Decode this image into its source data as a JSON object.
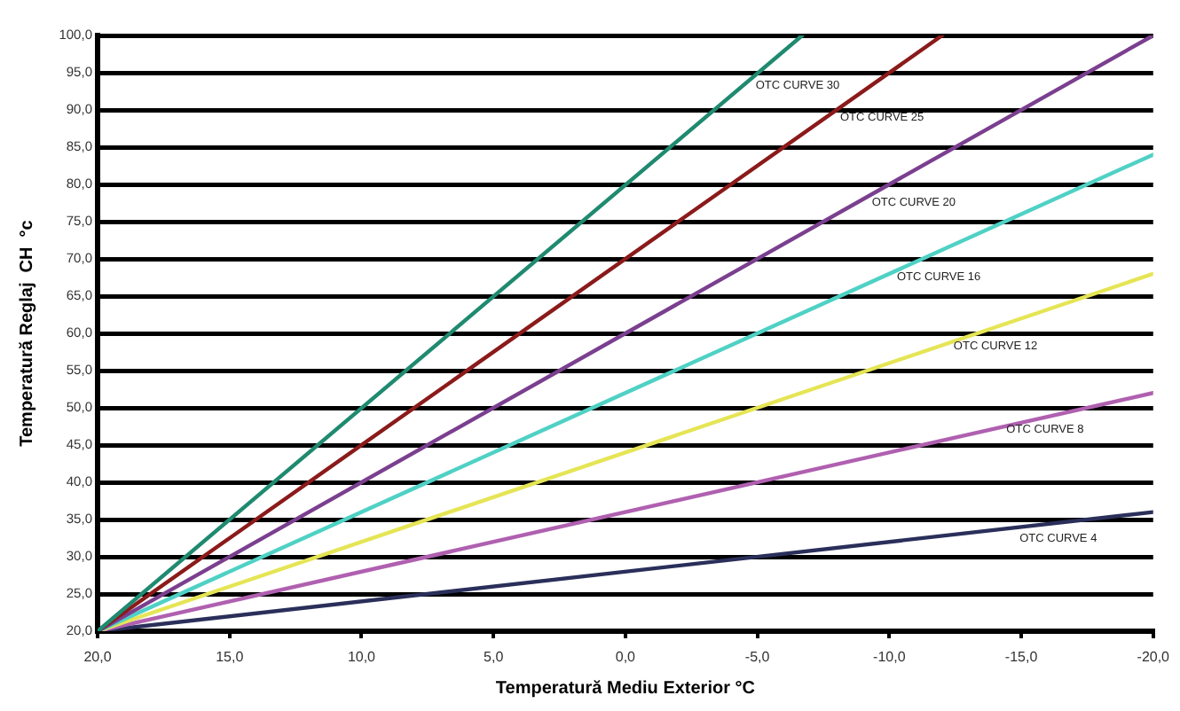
{
  "chart_data": {
    "type": "line",
    "xlabel": "Temperatură Mediu Exterior °C",
    "ylabel": "Temperatură Reglaj  CH  °c",
    "xlim": [
      20,
      -20
    ],
    "xticks": [
      {
        "value": 20,
        "label": "20,0"
      },
      {
        "value": 15,
        "label": "15,0"
      },
      {
        "value": 10,
        "label": "10,0"
      },
      {
        "value": 5,
        "label": "5,0"
      },
      {
        "value": 0,
        "label": "0,0"
      },
      {
        "value": -5,
        "label": "-5,0"
      },
      {
        "value": -10,
        "label": "-10,0"
      },
      {
        "value": -15,
        "label": "-15,0"
      },
      {
        "value": -20,
        "label": "-20,0"
      }
    ],
    "ylim": [
      20,
      100
    ],
    "yticks": [
      {
        "value": 20,
        "label": "20,0"
      },
      {
        "value": 25,
        "label": "25,0"
      },
      {
        "value": 30,
        "label": "30,0"
      },
      {
        "value": 35,
        "label": "35,0"
      },
      {
        "value": 40,
        "label": "40,0"
      },
      {
        "value": 45,
        "label": "45,0"
      },
      {
        "value": 50,
        "label": "50,0"
      },
      {
        "value": 55,
        "label": "55,0"
      },
      {
        "value": 60,
        "label": "60,0"
      },
      {
        "value": 65,
        "label": "65,0"
      },
      {
        "value": 70,
        "label": "70,0"
      },
      {
        "value": 75,
        "label": "75,0"
      },
      {
        "value": 80,
        "label": "80,0"
      },
      {
        "value": 85,
        "label": "85,0"
      },
      {
        "value": 90,
        "label": "90,0"
      },
      {
        "value": 95,
        "label": "95,0"
      },
      {
        "value": 100,
        "label": "100,0"
      }
    ],
    "grid": "y",
    "legend": false,
    "marker": "none",
    "line_style": "solid",
    "series": [
      {
        "color": "#1f8a70",
        "x": [
          20,
          -6.7
        ],
        "values": [
          20,
          100
        ]
      },
      {
        "color": "#8b1a1a",
        "x": [
          20,
          -12
        ],
        "values": [
          20,
          100
        ]
      },
      {
        "color": "#7b3f8f",
        "x": [
          20,
          -20
        ],
        "values": [
          20,
          100
        ]
      },
      {
        "color": "#4fd1c5",
        "x": [
          20,
          -20
        ],
        "values": [
          20,
          84
        ]
      },
      {
        "color": "#e5e555",
        "x": [
          20,
          -20
        ],
        "values": [
          20,
          68
        ]
      },
      {
        "color": "#b060b0",
        "x": [
          20,
          -20
        ],
        "values": [
          20,
          52
        ]
      },
      {
        "color": "#2a2f5a",
        "x": [
          20,
          -20
        ],
        "values": [
          20,
          36
        ]
      }
    ],
    "annotations": [
      {
        "text": "OTC CURVE 30",
        "x": -4.4,
        "y": 93.3
      },
      {
        "text": "OTC CURVE 25",
        "x": -7.6,
        "y": 89
      },
      {
        "text": "OTC CURVE 20",
        "x": -8.8,
        "y": 77.6
      },
      {
        "text": "OTC CURVE 16",
        "x": -9.75,
        "y": 67.6
      },
      {
        "text": "OTC CURVE 12",
        "x": -11.9,
        "y": 58.3
      },
      {
        "text": "OTC CURVE 8",
        "x": -13.9,
        "y": 47.1
      },
      {
        "text": "OTC CURVE 4",
        "x": -14.4,
        "y": 32.5
      }
    ]
  }
}
